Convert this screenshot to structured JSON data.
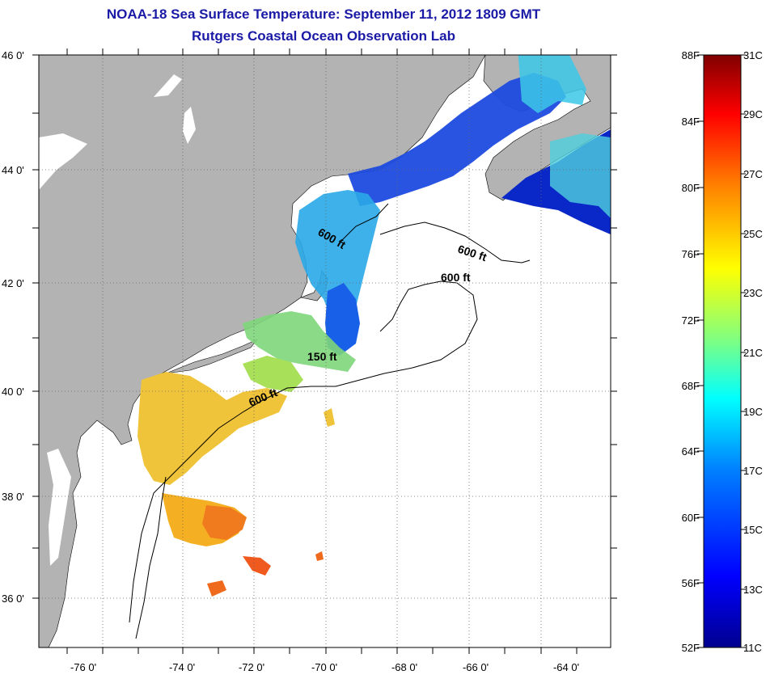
{
  "header": {
    "title": "NOAA-18 Sea Surface Temperature:  September 11, 2012 1809 GMT",
    "subtitle": "Rutgers Coastal Ocean Observation Lab"
  },
  "map": {
    "lat_labels": [
      {
        "value": 46,
        "text": "46 0'"
      },
      {
        "value": 44,
        "text": "44 0'"
      },
      {
        "value": 42,
        "text": "42 0'"
      },
      {
        "value": 40,
        "text": "40 0'"
      },
      {
        "value": 38,
        "text": "38 0'"
      },
      {
        "value": 36,
        "text": "36 0'"
      }
    ],
    "lon_labels": [
      {
        "value": -76,
        "text": "-76 0'"
      },
      {
        "value": -74,
        "text": "-74 0'"
      },
      {
        "value": -72,
        "text": "-72 0'"
      },
      {
        "value": -70,
        "text": "-70 0'"
      },
      {
        "value": -68,
        "text": "-68 0'"
      },
      {
        "value": -66,
        "text": "-66 0'"
      },
      {
        "value": -64,
        "text": "-64 0'"
      }
    ],
    "contour_labels": [
      "600 ft",
      "600 ft",
      "600 ft",
      "150 ft",
      "600 ft"
    ],
    "colors": {
      "land": "#b3b3b3",
      "ocean_no_data": "#ffffff",
      "grid": "#555555"
    }
  },
  "colorbar": {
    "f_labels": [
      "88F",
      "84F",
      "80F",
      "76F",
      "72F",
      "68F",
      "64F",
      "60F",
      "56F",
      "52F"
    ],
    "c_labels": [
      "31C",
      "29C",
      "27C",
      "25C",
      "23C",
      "21C",
      "19C",
      "17C",
      "15C",
      "13C",
      "11C"
    ],
    "gradient": [
      "#00008f",
      "#0000ff",
      "#0080ff",
      "#00ffff",
      "#80ff80",
      "#ffff00",
      "#ff8000",
      "#ff0000",
      "#800000"
    ]
  }
}
